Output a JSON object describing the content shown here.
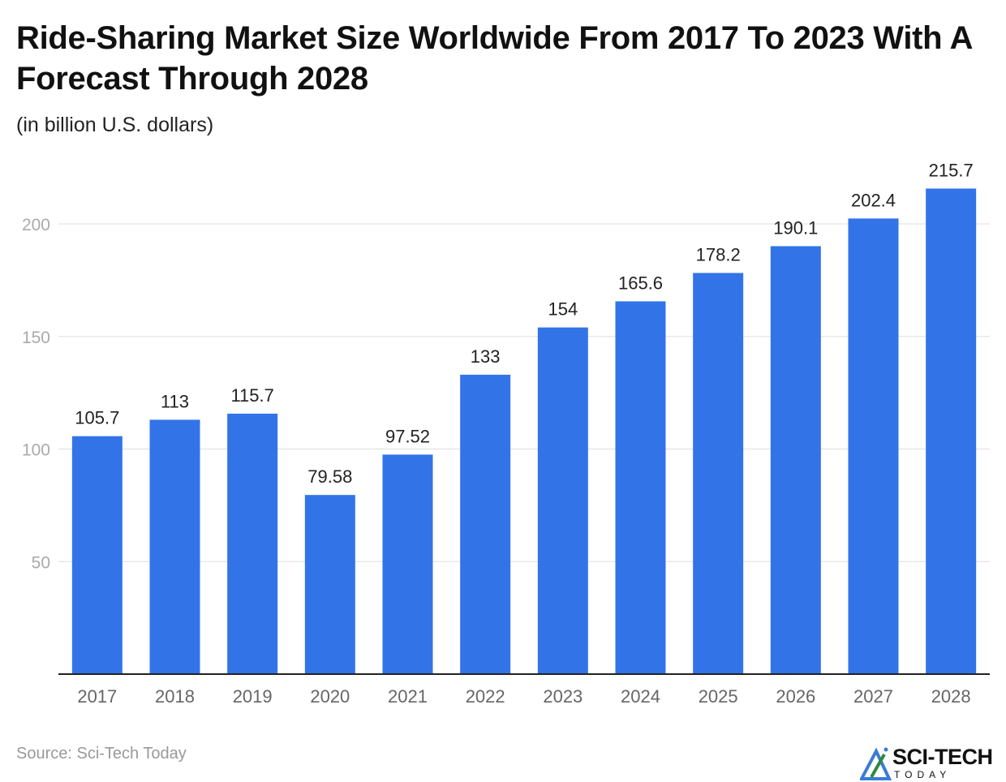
{
  "title": "Ride-Sharing Market Size Worldwide From 2017 To 2023 With A Forecast Through 2028",
  "subtitle": "(in billion U.S. dollars)",
  "source": "Source: Sci-Tech Today",
  "logo": {
    "name": "SCI-TECH",
    "tagline": "TODAY"
  },
  "chart_data": {
    "type": "bar",
    "categories": [
      "2017",
      "2018",
      "2019",
      "2020",
      "2021",
      "2022",
      "2023",
      "2024",
      "2025",
      "2026",
      "2027",
      "2028"
    ],
    "values": [
      105.7,
      113,
      115.7,
      79.58,
      97.52,
      133,
      154,
      165.6,
      178.2,
      190.1,
      202.4,
      215.7
    ],
    "value_labels": [
      "105.7",
      "113",
      "115.7",
      "79.58",
      "97.52",
      "133",
      "154",
      "165.6",
      "178.2",
      "190.1",
      "202.4",
      "215.7"
    ],
    "ylim": [
      0,
      200
    ],
    "yticks": [
      50,
      100,
      150,
      200
    ],
    "grid": true,
    "bar_color": "#3274E8",
    "xlabel": "",
    "ylabel": ""
  }
}
